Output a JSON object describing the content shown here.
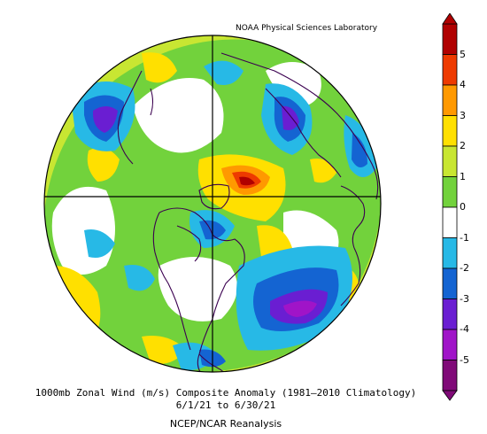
{
  "header": {
    "lab_name": "NOAA Physical Sciences Laboratory"
  },
  "caption": {
    "line1": "1000mb Zonal Wind (m/s) Composite Anomaly (1981–2010 Climatology)",
    "line2": "6/1/21  to 6/30/21",
    "line3": "NCEP/NCAR Reanalysis"
  },
  "colorbar": {
    "labels": [
      "5",
      "4",
      "3",
      "2",
      "1",
      "0",
      "-1",
      "-2",
      "-3",
      "-4",
      "-5"
    ],
    "colors": [
      "#b00000",
      "#ee3a00",
      "#ff9900",
      "#ffe000",
      "#c8e632",
      "#72d23c",
      "#ffffff",
      "#27b9e6",
      "#1464d2",
      "#6a1ed2",
      "#a014c8",
      "#800a78"
    ]
  },
  "map": {
    "projection": "north-polar-stereographic",
    "palette": {
      "green": "#72d23c",
      "lightgreen": "#c8e632",
      "yellow": "#ffe000",
      "orange": "#ff9900",
      "red": "#ee3a00",
      "darkred": "#b00000",
      "cyan": "#27b9e6",
      "blue": "#1464d2",
      "purple": "#6a1ed2",
      "magenta": "#a014c8",
      "white": "#ffffff",
      "outline": "#3b0050"
    }
  }
}
